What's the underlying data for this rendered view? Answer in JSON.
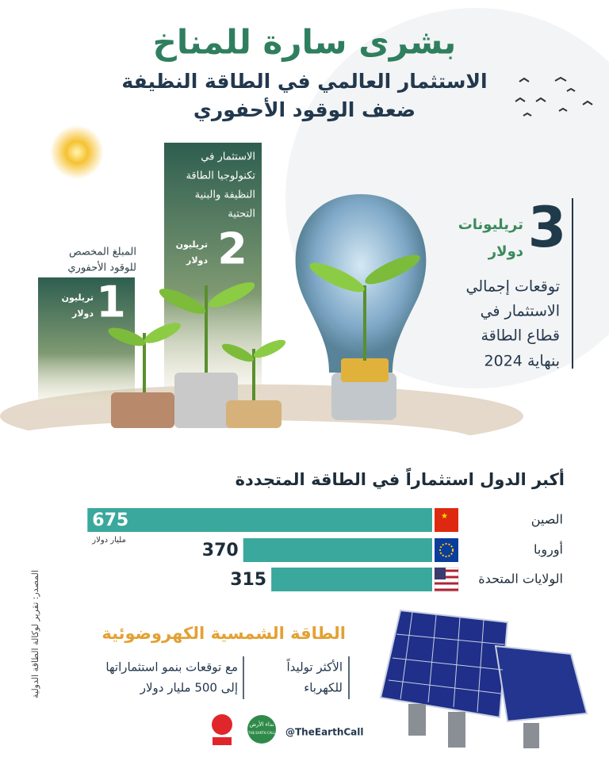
{
  "header": {
    "title": "بشرى سارة للمناخ",
    "subtitle": [
      "الاستثمار العالمي في الطاقة النظيفة",
      "ضعف الوقود الأحفوري"
    ]
  },
  "comparison": [
    {
      "label": [
        "المبلغ المخصص",
        "للوقود الأحفوري"
      ],
      "value": 1,
      "unit": [
        "تريليون",
        "دولار"
      ]
    },
    {
      "label": [
        "الاستثمار في",
        "تكنولوجيا الطاقة",
        "النظيفة والبنية",
        "التحتية"
      ],
      "value": 2,
      "unit": [
        "تريليون",
        "دولار"
      ]
    }
  ],
  "total": {
    "value": 3,
    "unit": [
      "تريليونات",
      "دولار"
    ],
    "text": [
      "توقعات إجمالي",
      "الاستثمار في",
      "قطاع الطاقة",
      "بنهاية 2024"
    ]
  },
  "chart_data": {
    "type": "bar",
    "orientation": "horizontal",
    "title": "أكبر الدول استثماراً في الطاقة المتجددة",
    "categories": [
      "الصين",
      "أوروبا",
      "الولايات المتحدة"
    ],
    "values": [
      675,
      370,
      315
    ],
    "unit": "مليار دولار",
    "color": "#3aa89c"
  },
  "source": "المصدر: تقرير لوكالة الطاقة الدولية",
  "solar": {
    "title": "الطاقة الشمسية الكهروضوئية",
    "points": [
      [
        "الأكثر توليداً",
        "للكهرباء"
      ],
      [
        "مع توقعات بنمو استثماراتها",
        "إلى 500 مليار دولار"
      ]
    ]
  },
  "footer": {
    "handle": "@TheEarthCall",
    "brand": "نداء الأرض",
    "brand_en": "THE EARTH CALL"
  }
}
